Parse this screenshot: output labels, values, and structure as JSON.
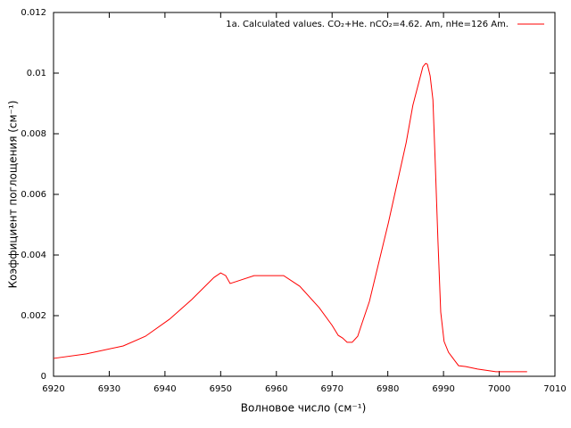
{
  "chart_data": {
    "type": "line",
    "xlabel": "Волновое число (см⁻¹)",
    "ylabel": "Коэффициент поглощения (см⁻¹)",
    "x": [
      6920,
      6925.9,
      6932.5,
      6936.5,
      6940.8,
      6944.8,
      6948.8,
      6950,
      6950.9,
      6951.7,
      6952.7,
      6956,
      6961.3,
      6964.2,
      6967.7,
      6970,
      6971.1,
      6971.9,
      6972.7,
      6973.6,
      6974.6,
      6975.3,
      6976.7,
      6980.1,
      6983.3,
      6984.5,
      6986.3,
      6986.8,
      6987.1,
      6987.6,
      6988.1,
      6988.5,
      6989,
      6989.5,
      6990.1,
      6990.9,
      6992.7,
      6994,
      6996.1,
      6999.4,
      7005
    ],
    "series": [
      {
        "name": "1a. Calculated values. CO₂+He. nCO₂=4.62. Am, nHe=126 Am.",
        "color": "#ff0000",
        "values": [
          0.00059,
          0.00074,
          0.001,
          0.00132,
          0.00188,
          0.00253,
          0.00326,
          0.00341,
          0.00332,
          0.00306,
          0.00312,
          0.00332,
          0.00332,
          0.00297,
          0.00226,
          0.00168,
          0.00135,
          0.00126,
          0.00112,
          0.00112,
          0.00132,
          0.00171,
          0.00247,
          0.00506,
          0.00771,
          0.00894,
          0.01021,
          0.01032,
          0.01029,
          0.00991,
          0.00912,
          0.00712,
          0.00447,
          0.00212,
          0.00115,
          0.00079,
          0.00035,
          0.00032,
          0.00024,
          0.00015,
          0.00015
        ]
      }
    ],
    "xlim": [
      6920,
      7010
    ],
    "xticks": [
      6920,
      6930,
      6940,
      6950,
      6960,
      6970,
      6980,
      6990,
      7000,
      7010
    ],
    "ylim": [
      0,
      0.012
    ],
    "yticks": [
      0,
      0.002,
      0.004,
      0.006,
      0.008,
      0.01,
      0.012
    ],
    "legend": "upper right"
  }
}
